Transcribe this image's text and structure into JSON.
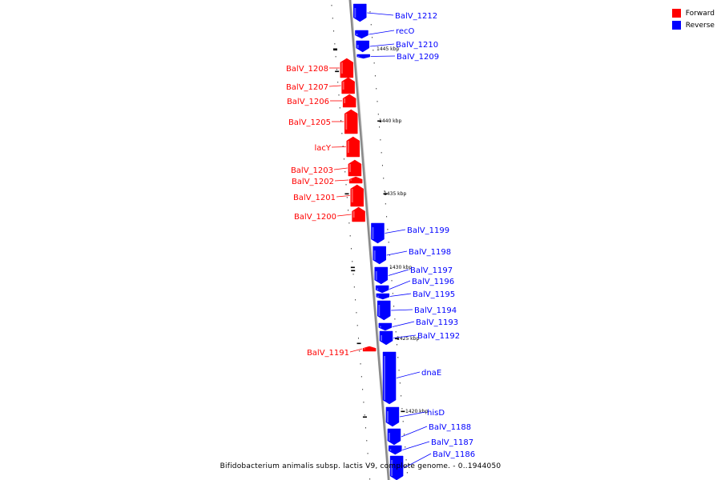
{
  "caption": "Bifidobacterium animalis subsp. lactis V9, complete genome. - 0..1944050",
  "legend": [
    {
      "label": "Forward",
      "color": "#ff0000"
    },
    {
      "label": "Reverse",
      "color": "#0000ff"
    }
  ],
  "colors": {
    "forward": "#ff0000",
    "reverse": "#0000ff",
    "backbone": "#888888"
  },
  "scale_labels": [
    "1445 kbp",
    "1440 kbp",
    "1435 kbp",
    "1430 kbp",
    "1425 kbp",
    "1420 kbp"
  ],
  "genes": [
    {
      "name": "BalV_1212",
      "strand": "reverse"
    },
    {
      "name": "recO",
      "strand": "reverse"
    },
    {
      "name": "BalV_1210",
      "strand": "reverse"
    },
    {
      "name": "BalV_1209",
      "strand": "reverse"
    },
    {
      "name": "BalV_1208",
      "strand": "forward"
    },
    {
      "name": "BalV_1207",
      "strand": "forward"
    },
    {
      "name": "BalV_1206",
      "strand": "forward"
    },
    {
      "name": "BalV_1205",
      "strand": "forward"
    },
    {
      "name": "lacY",
      "strand": "forward"
    },
    {
      "name": "BalV_1203",
      "strand": "forward"
    },
    {
      "name": "BalV_1202",
      "strand": "forward"
    },
    {
      "name": "BalV_1201",
      "strand": "forward"
    },
    {
      "name": "BalV_1200",
      "strand": "forward"
    },
    {
      "name": "BalV_1199",
      "strand": "reverse"
    },
    {
      "name": "BalV_1198",
      "strand": "reverse"
    },
    {
      "name": "BalV_1197",
      "strand": "reverse"
    },
    {
      "name": "BalV_1196",
      "strand": "reverse"
    },
    {
      "name": "BalV_1195",
      "strand": "reverse"
    },
    {
      "name": "BalV_1194",
      "strand": "reverse"
    },
    {
      "name": "BalV_1193",
      "strand": "reverse"
    },
    {
      "name": "BalV_1192",
      "strand": "reverse"
    },
    {
      "name": "BalV_1191",
      "strand": "forward"
    },
    {
      "name": "dnaE",
      "strand": "reverse"
    },
    {
      "name": "hisD",
      "strand": "reverse"
    },
    {
      "name": "BalV_1188",
      "strand": "reverse"
    },
    {
      "name": "BalV_1187",
      "strand": "reverse"
    },
    {
      "name": "BalV_1186",
      "strand": "reverse"
    }
  ]
}
